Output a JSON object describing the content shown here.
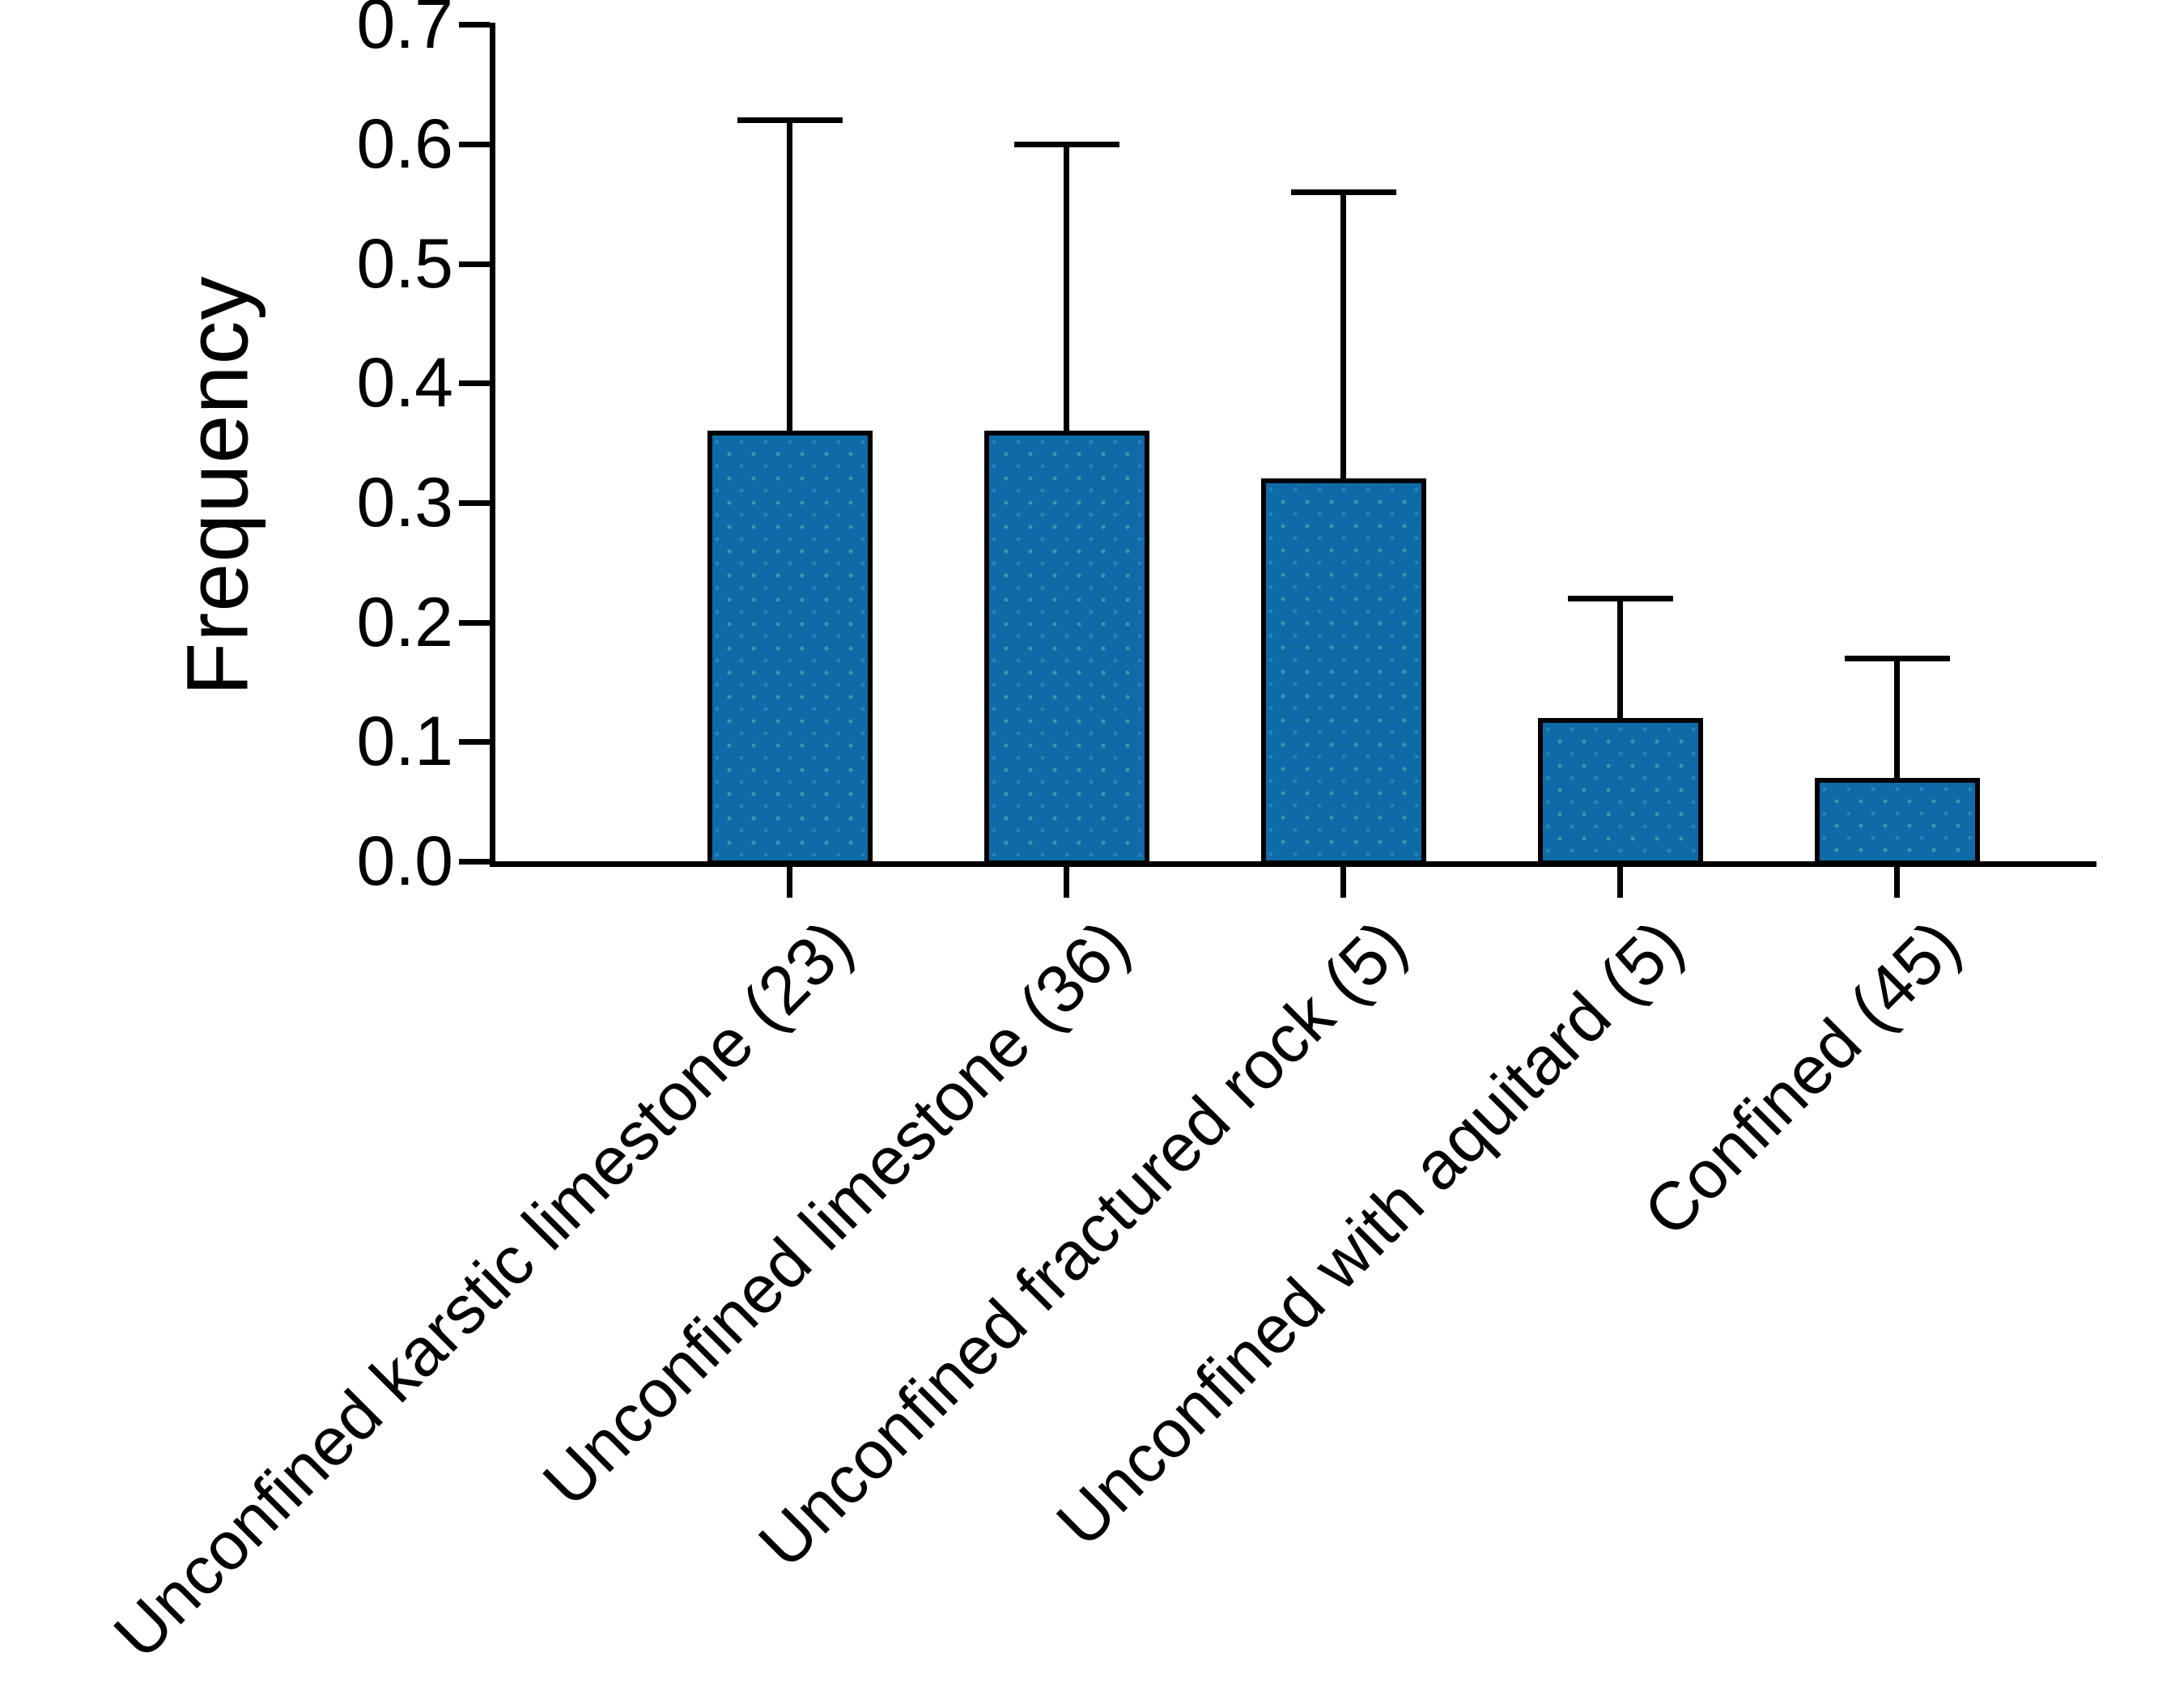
{
  "chart_data": {
    "type": "bar",
    "title": "",
    "xlabel": "",
    "ylabel": "Frequency",
    "categories": [
      "Unconfined karstic limestone (23)",
      "Unconfined limestone (36)",
      "Unconfined fractured rock (5)",
      "Unconfined with aquitard (5)",
      "Confined (45)"
    ],
    "values": [
      0.36,
      0.36,
      0.32,
      0.12,
      0.07
    ],
    "error_plus": [
      0.26,
      0.24,
      0.24,
      0.1,
      0.1
    ],
    "error_tops": [
      0.62,
      0.6,
      0.56,
      0.22,
      0.17
    ],
    "error_bars": "upper only, black caps",
    "y_ticks": [
      "0.0",
      "0.1",
      "0.2",
      "0.3",
      "0.4",
      "0.5",
      "0.6",
      "0.7"
    ],
    "ylim": [
      0.0,
      0.7
    ],
    "grid": false,
    "legend": "none",
    "x_tick_label_rotation_deg": 45,
    "bar_color": "#0E6BA8",
    "bar_edge_color": "#000000",
    "error_color": "#000000",
    "axis_color": "#000000",
    "text_color": "#000000",
    "background_color": "#FFFFFF"
  }
}
